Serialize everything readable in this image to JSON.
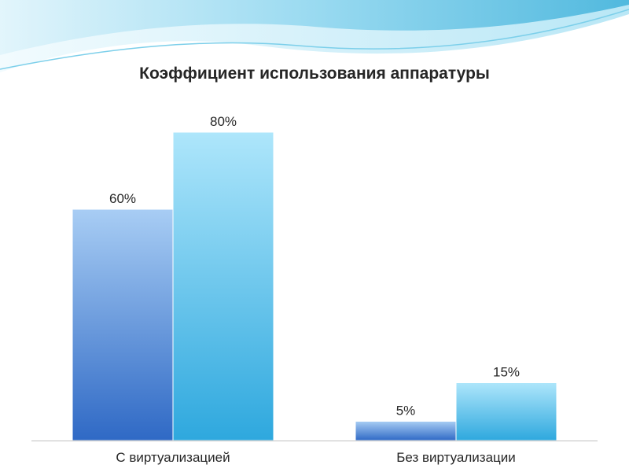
{
  "chart_data": {
    "type": "bar",
    "title": "Коэффициент использования аппаратуры",
    "categories": [
      "С виртуализацией",
      "Без виртуализации"
    ],
    "series": [
      {
        "values": [
          60,
          5
        ],
        "labels": [
          "60%",
          "5%"
        ],
        "color": "#3d79d0"
      },
      {
        "values": [
          80,
          15
        ],
        "labels": [
          "80%",
          "15%"
        ],
        "color": "#42b5e6"
      }
    ],
    "ylim": [
      0,
      80
    ],
    "grid": false,
    "legend": "none"
  },
  "colors": {
    "accent": "#5fc3e8",
    "baseline": "#bfbfbf",
    "text": "#262626"
  }
}
